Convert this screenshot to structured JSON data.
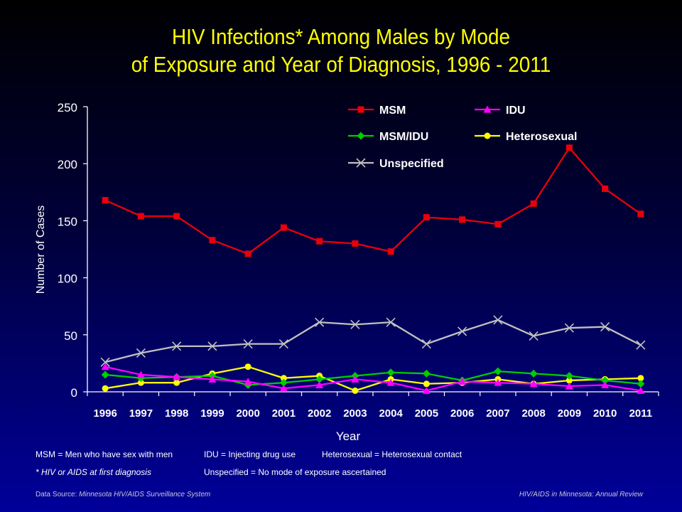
{
  "title_line1": "HIV Infections* Among Males by Mode",
  "title_line2": "of Exposure and Year of Diagnosis, 1996 - 2011",
  "colors": {
    "title": "#ffff00",
    "background_top": "#000000",
    "background_bottom": "#00009a",
    "axis": "#ffffff"
  },
  "chart_data": {
    "type": "line",
    "xlabel": "Year",
    "ylabel": "Number of Cases",
    "ylim": [
      0,
      250
    ],
    "yticks": [
      0,
      50,
      100,
      150,
      200,
      250
    ],
    "grid": false,
    "legend_position": "top-right",
    "categories": [
      "1996",
      "1997",
      "1998",
      "1999",
      "2000",
      "2001",
      "2002",
      "2003",
      "2004",
      "2005",
      "2006",
      "2007",
      "2008",
      "2009",
      "2010",
      "2011"
    ],
    "series": [
      {
        "name": "MSM",
        "color": "#e8000b",
        "marker": "square",
        "values": [
          168,
          154,
          154,
          133,
          121,
          144,
          132,
          130,
          123,
          153,
          151,
          147,
          165,
          214,
          178,
          156
        ]
      },
      {
        "name": "IDU",
        "color": "#ff00ff",
        "marker": "triangle",
        "values": [
          22,
          15,
          13,
          11,
          9,
          3,
          6,
          11,
          8,
          1,
          9,
          8,
          7,
          5,
          6,
          1
        ]
      },
      {
        "name": "MSM/IDU",
        "color": "#00cc00",
        "marker": "diamond",
        "values": [
          15,
          12,
          13,
          14,
          6,
          8,
          11,
          14,
          17,
          16,
          10,
          18,
          16,
          14,
          10,
          7
        ]
      },
      {
        "name": "Heterosexual",
        "color": "#ffff00",
        "marker": "circle",
        "values": [
          3,
          8,
          8,
          16,
          22,
          12,
          14,
          1,
          11,
          7,
          8,
          11,
          7,
          10,
          11,
          12
        ]
      },
      {
        "name": "Unspecified",
        "color": "#c0c0c0",
        "marker": "x",
        "values": [
          26,
          34,
          40,
          40,
          42,
          42,
          61,
          59,
          61,
          42,
          53,
          63,
          49,
          56,
          57,
          41
        ]
      }
    ]
  },
  "notes": {
    "msm": "MSM = Men who have sex with men",
    "idu": "IDU = Injecting drug use",
    "hetero": "Heterosexual = Heterosexual contact",
    "footnote": "* HIV or AIDS at first diagnosis",
    "unspec": "Unspecified = No mode of exposure ascertained"
  },
  "footer": {
    "source_label": "Data Source:",
    "source_value": "Minnesota HIV/AIDS Surveillance System",
    "right": "HIV/AIDS in Minnesota: Annual Review"
  }
}
